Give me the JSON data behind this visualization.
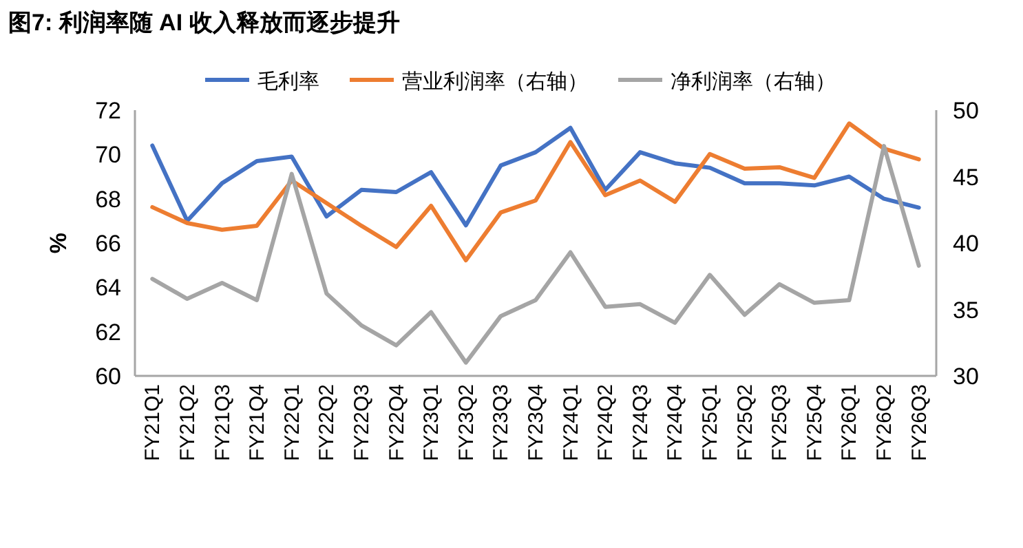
{
  "chart_data": {
    "type": "line",
    "title": "图7: 利润率随 AI 收入释放而逐步提升",
    "ylabel": "%",
    "categories": [
      "FY21Q1",
      "FY21Q2",
      "FY21Q3",
      "FY21Q4",
      "FY22Q1",
      "FY22Q2",
      "FY22Q3",
      "FY22Q4",
      "FY23Q1",
      "FY23Q2",
      "FY23Q3",
      "FY23Q4",
      "FY24Q1",
      "FY24Q2",
      "FY24Q3",
      "FY24Q4",
      "FY25Q1",
      "FY25Q2",
      "FY25Q3",
      "FY25Q4",
      "FY26Q1",
      "FY26Q2",
      "FY26Q3"
    ],
    "series": [
      {
        "name": "毛利率",
        "color": "#4472c4",
        "values": [
          70.4,
          67.0,
          68.7,
          69.7,
          69.9,
          67.2,
          68.4,
          68.3,
          69.2,
          66.8,
          69.5,
          70.1,
          71.2,
          68.4,
          70.1,
          69.6,
          69.4,
          68.7,
          68.7,
          68.6,
          69.0,
          68.0,
          67.6
        ]
      },
      {
        "name": "营业利润率（右轴）",
        "color": "#ed7d31",
        "axis": "y2",
        "values": [
          42.7,
          41.5,
          41.0,
          41.3,
          44.7,
          43.0,
          41.3,
          39.7,
          42.8,
          38.7,
          42.3,
          43.2,
          47.6,
          43.6,
          44.7,
          43.1,
          46.7,
          45.6,
          45.7,
          44.9,
          49.0,
          47.1,
          46.3
        ]
      },
      {
        "name": "净利润率（右轴）",
        "color": "#a5a5a5",
        "axis": "y2",
        "values": [
          37.3,
          35.8,
          37.0,
          35.7,
          45.2,
          36.2,
          33.8,
          32.3,
          34.8,
          31.0,
          34.5,
          35.7,
          39.3,
          35.2,
          35.4,
          34.0,
          37.6,
          34.6,
          36.9,
          35.5,
          35.7,
          47.3,
          38.3
        ]
      }
    ],
    "ylim": [
      60,
      72
    ],
    "yticks": [
      60,
      62,
      64,
      66,
      68,
      70,
      72
    ],
    "y2lim": [
      30,
      50
    ],
    "y2ticks": [
      30,
      35,
      40,
      45,
      50
    ],
    "grid": false,
    "legend": "top",
    "marker": "none",
    "line_style": "solid"
  }
}
